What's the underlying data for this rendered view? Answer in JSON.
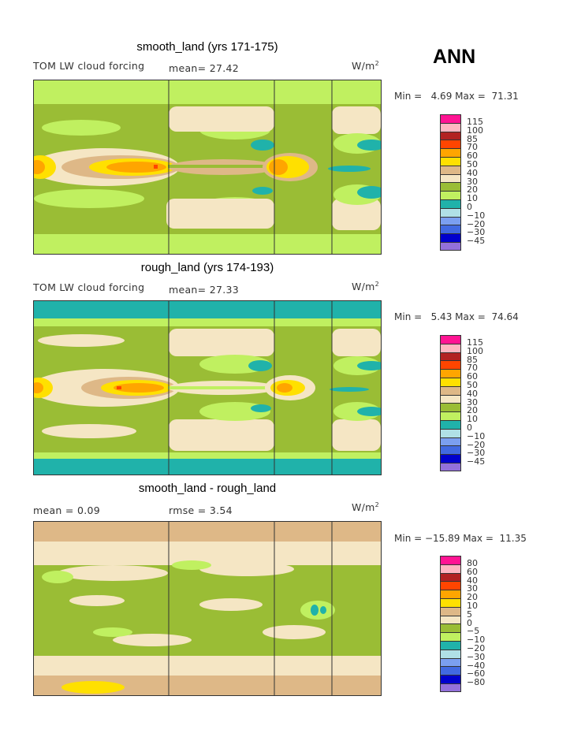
{
  "season": "ANN",
  "colors": [
    "#ff1493",
    "#ffb6c1",
    "#b22222",
    "#ff4500",
    "#ffa500",
    "#ffe000",
    "#deb887",
    "#f5e6c4",
    "#9abd35",
    "#c0f060",
    "#20b2aa",
    "#b0e0e6",
    "#7b9ff0",
    "#4169e1",
    "#0000cd",
    "#9370db"
  ],
  "chart_data": [
    {
      "type": "heatmap",
      "title": "smooth_land (yrs 171-175)",
      "variable": "TOM LW cloud forcing",
      "stat_text": "mean=  27.42",
      "units_base": "W/m",
      "units_exp": "2",
      "minmax_text": "Min =   4.69 Max =  71.31",
      "levels": [
        "115",
        "100",
        "85",
        "70",
        "60",
        "50",
        "40",
        "30",
        "20",
        "10",
        "0",
        "−10",
        "−20",
        "−30",
        "−45"
      ]
    },
    {
      "type": "heatmap",
      "title": "rough_land (yrs 174-193)",
      "variable": "TOM LW cloud forcing",
      "stat_text": "mean=  27.33",
      "units_base": "W/m",
      "units_exp": "2",
      "minmax_text": "Min =   5.43 Max =  74.64",
      "levels": [
        "115",
        "100",
        "85",
        "70",
        "60",
        "50",
        "40",
        "30",
        "20",
        "10",
        "0",
        "−10",
        "−20",
        "−30",
        "−45"
      ]
    },
    {
      "type": "heatmap",
      "title": "smooth_land - rough_land",
      "stat_text": "mean =   0.09",
      "stat2_text": "rmse =   3.54",
      "units_base": "W/m",
      "units_exp": "2",
      "minmax_text": "Min = −15.89 Max =  11.35",
      "levels": [
        "80",
        "60",
        "40",
        "30",
        "20",
        "10",
        "5",
        "0",
        "−5",
        "−10",
        "−20",
        "−30",
        "−40",
        "−60",
        "−80"
      ]
    }
  ]
}
